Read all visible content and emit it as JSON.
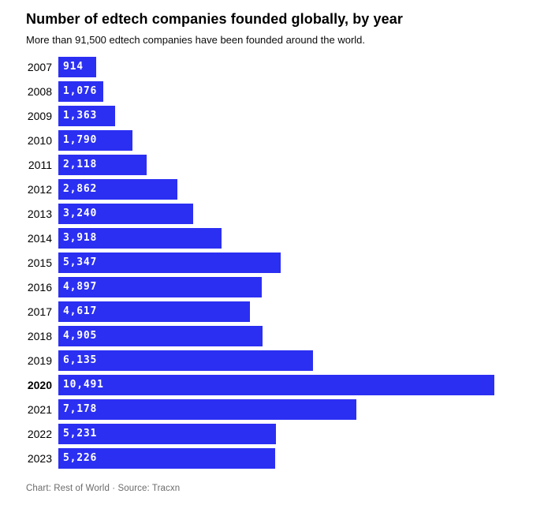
{
  "chart": {
    "title": "Number of edtech companies founded globally, by year",
    "subtitle": "More than 91,500 edtech companies have been founded around the world.",
    "footer": "Chart: Rest of World · Source: Tracxn",
    "bar_color": "#2b2ff2",
    "value_text_color": "#ffffff"
  },
  "chart_data": {
    "type": "bar",
    "orientation": "horizontal",
    "title": "Number of edtech companies founded globally, by year",
    "subtitle": "More than 91,500 edtech companies have been founded around the world.",
    "xlabel": "",
    "ylabel": "",
    "xlim": [
      0,
      10491
    ],
    "grid": false,
    "legend": false,
    "categories": [
      "2007",
      "2008",
      "2009",
      "2010",
      "2011",
      "2012",
      "2013",
      "2014",
      "2015",
      "2016",
      "2017",
      "2018",
      "2019",
      "2020",
      "2021",
      "2022",
      "2023"
    ],
    "values": [
      914,
      1076,
      1363,
      1790,
      2118,
      2862,
      3240,
      3918,
      5347,
      4897,
      4617,
      4905,
      6135,
      10491,
      7178,
      5231,
      5226
    ],
    "value_labels": [
      "914",
      "1,076",
      "1,363",
      "1,790",
      "2,118",
      "2,862",
      "3,240",
      "3,918",
      "5,347",
      "4,897",
      "4,617",
      "4,905",
      "6,135",
      "10,491",
      "7,178",
      "5,231",
      "5,226"
    ],
    "highlighted_category": "2020",
    "bar_color": "#2b2ff2",
    "value_label_position": "inside-left"
  }
}
